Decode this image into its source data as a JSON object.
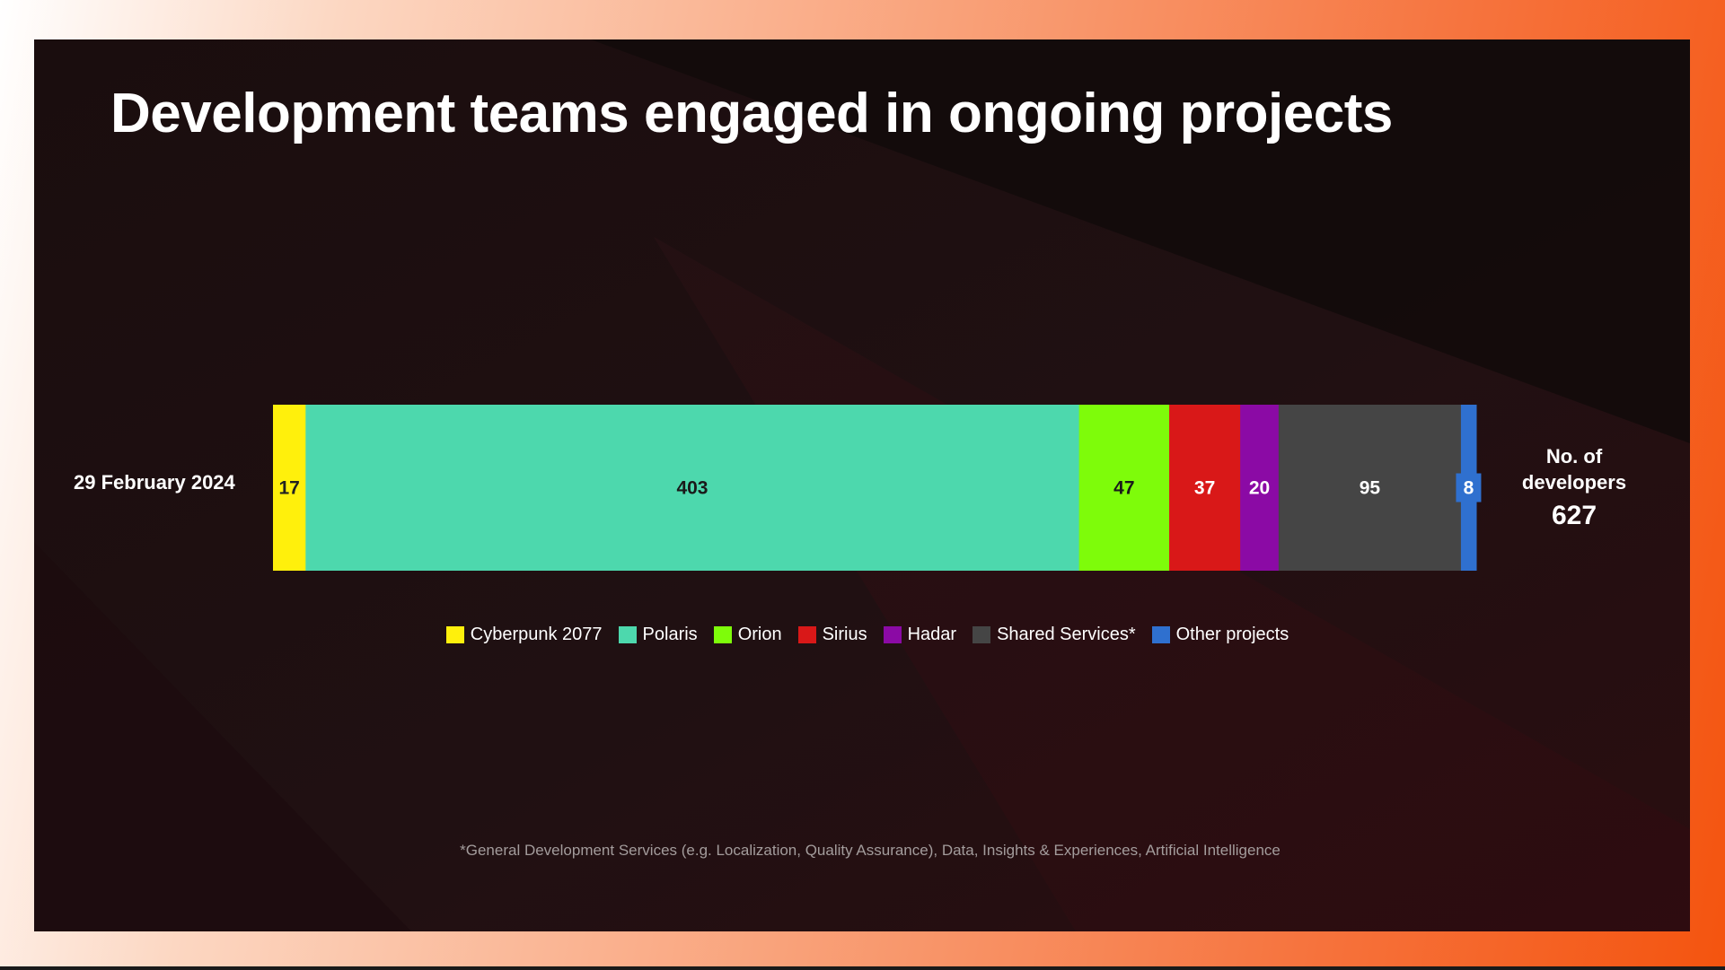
{
  "slide": {
    "title": "Development teams engaged in ongoing projects",
    "footnote": "*General Development Services (e.g. Localization, Quality Assurance), Data, Insights & Experiences, Artificial Intelligence",
    "total_label": "No. of\ndevelopers",
    "total_value": "627"
  },
  "chart_data": {
    "type": "bar",
    "orientation": "horizontal",
    "stacked": true,
    "categories": [
      "29 February 2024"
    ],
    "series": [
      {
        "name": "Cyberpunk 2077",
        "values": [
          17
        ],
        "color": "#fff00c",
        "label_color": "#222222"
      },
      {
        "name": "Polaris",
        "values": [
          403
        ],
        "color": "#4dd8ad",
        "label_color": "#1a1a1a"
      },
      {
        "name": "Orion",
        "values": [
          47
        ],
        "color": "#7efc0a",
        "label_color": "#1a1a1a"
      },
      {
        "name": "Sirius",
        "values": [
          37
        ],
        "color": "#d91818",
        "label_color": "#ffffff"
      },
      {
        "name": "Hadar",
        "values": [
          20
        ],
        "color": "#8b0aa5",
        "label_color": "#ffffff"
      },
      {
        "name": "Shared Services*",
        "values": [
          95
        ],
        "color": "#454545",
        "label_color": "#ffffff"
      },
      {
        "name": "Other projects",
        "values": [
          8
        ],
        "color": "#2f70cf",
        "label_color": "#ffffff"
      }
    ],
    "total": 627,
    "legend_position": "bottom",
    "grid": false
  }
}
